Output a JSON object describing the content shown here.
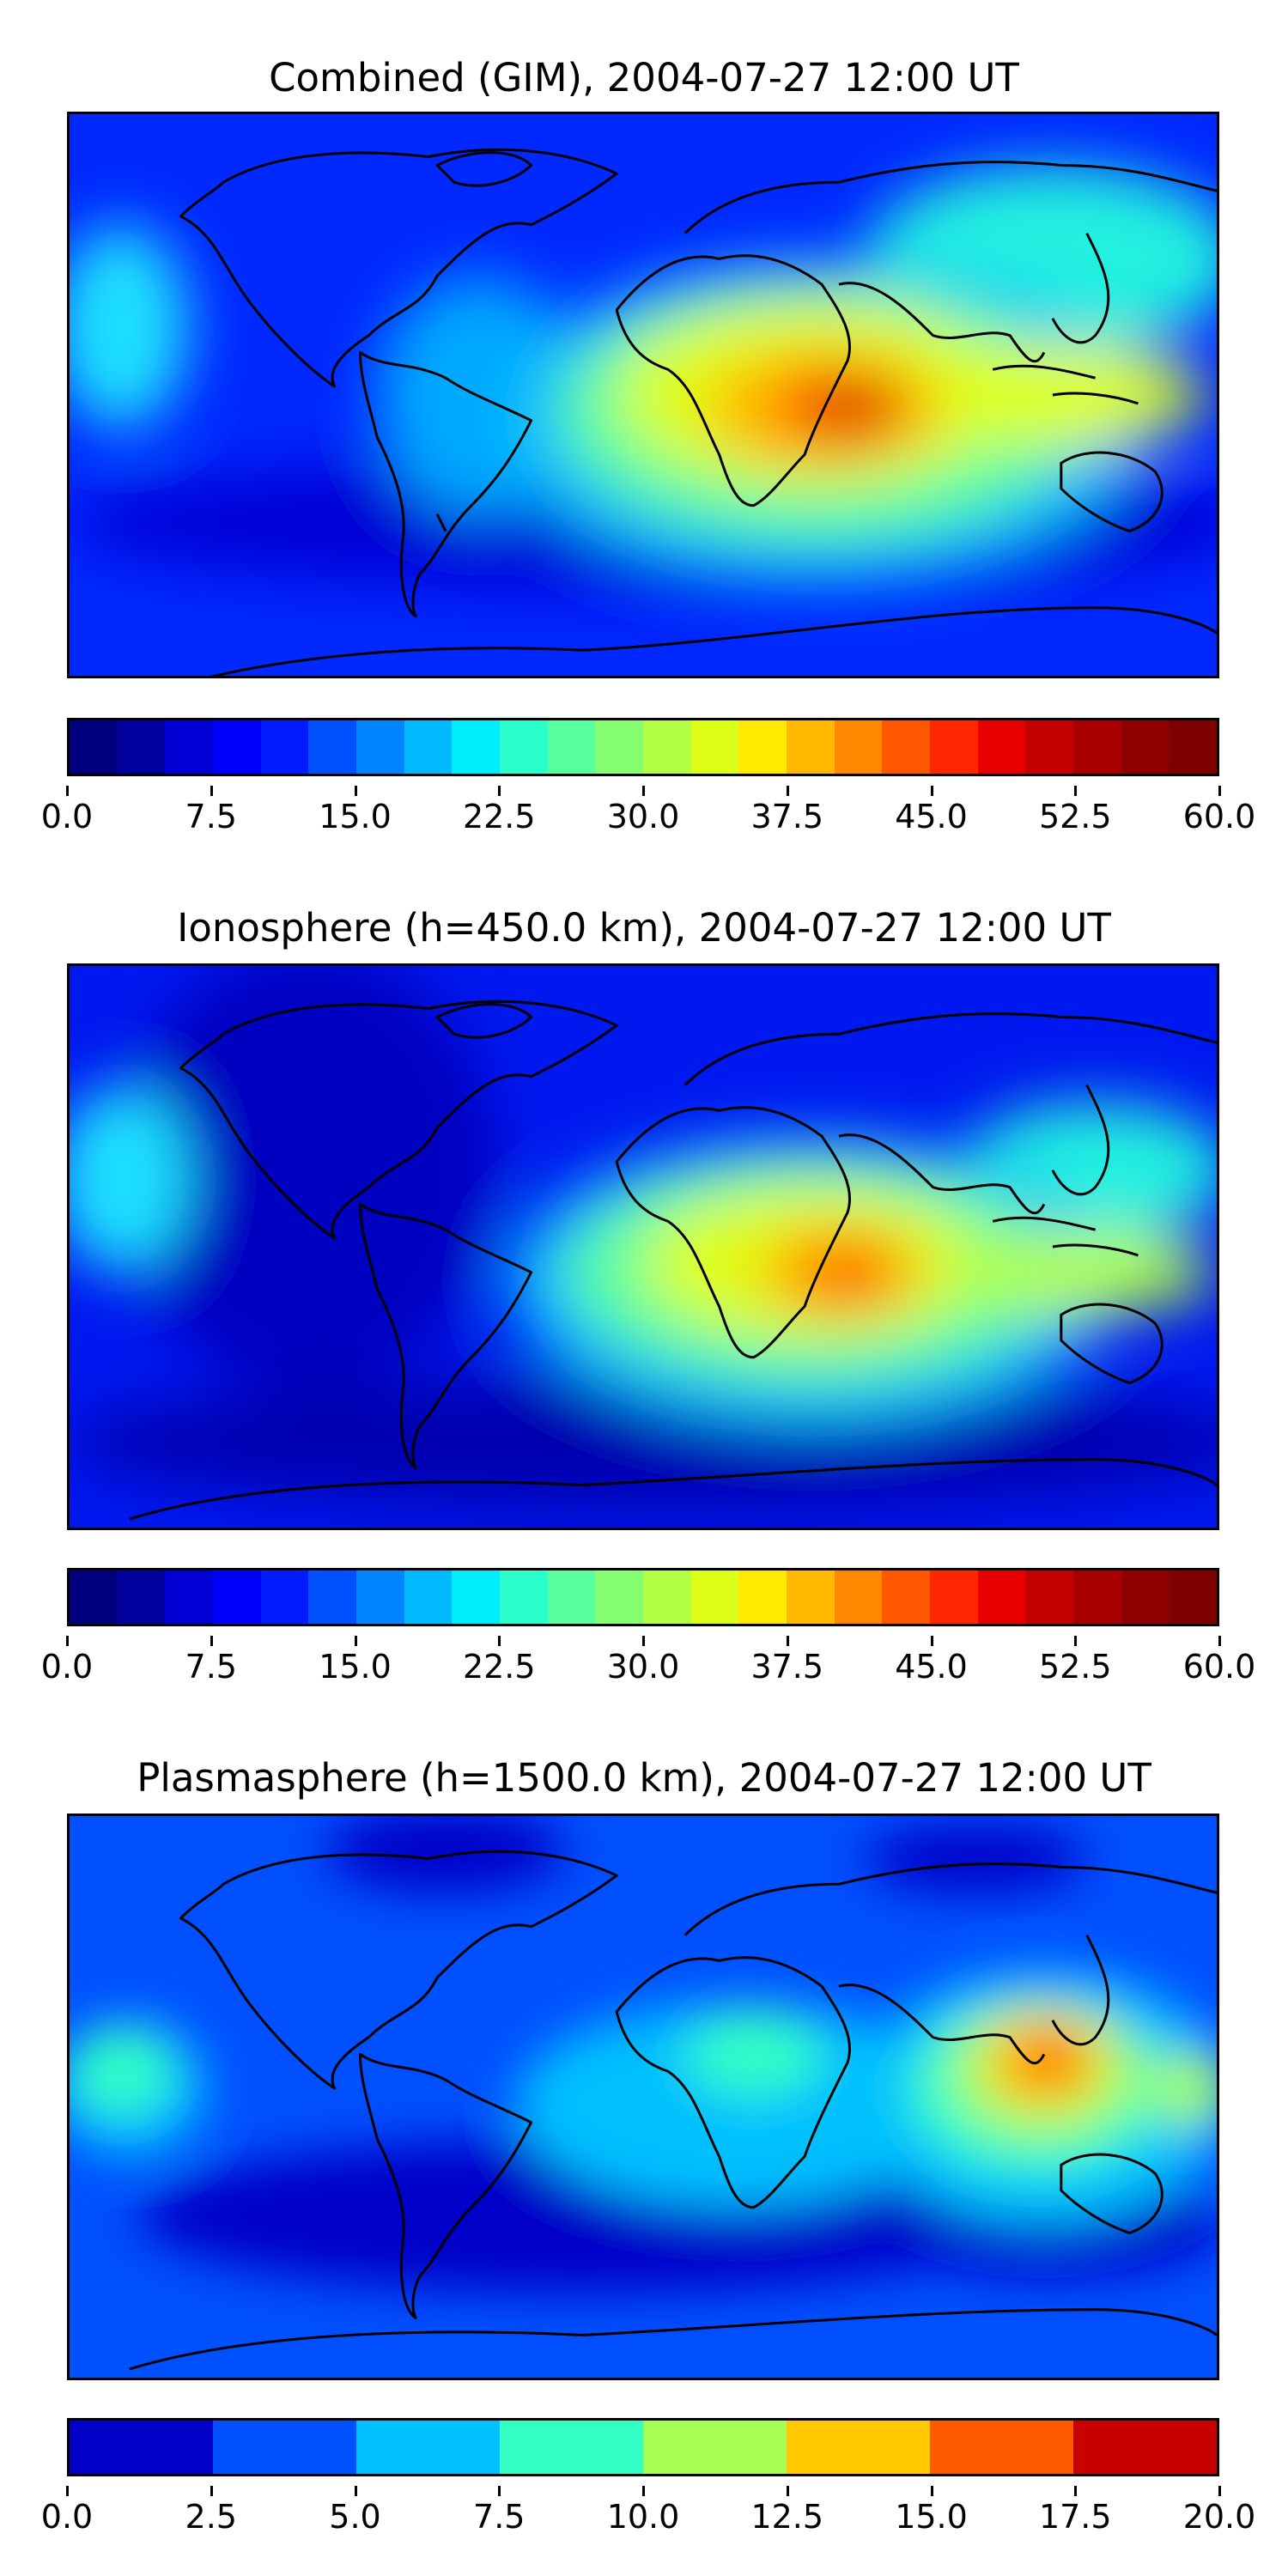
{
  "panels": [
    {
      "title": "Combined (GIM), 2004-07-27 12:00 UT",
      "ticks": [
        "0.0",
        "7.5",
        "15.0",
        "22.5",
        "30.0",
        "37.5",
        "45.0",
        "52.5",
        "60.0"
      ],
      "colorbar_range": [
        0,
        60
      ],
      "colorbar_levels": 24
    },
    {
      "title": "Ionosphere  (h=450.0 km), 2004-07-27 12:00 UT",
      "ticks": [
        "0.0",
        "7.5",
        "15.0",
        "22.5",
        "30.0",
        "37.5",
        "45.0",
        "52.5",
        "60.0"
      ],
      "colorbar_range": [
        0,
        60
      ],
      "colorbar_levels": 24
    },
    {
      "title": "Plasmasphere (h=1500.0 km), 2004-07-27 12:00 UT",
      "ticks": [
        "0.0",
        "2.5",
        "5.0",
        "7.5",
        "10.0",
        "12.5",
        "15.0",
        "17.5",
        "20.0"
      ],
      "colorbar_range": [
        0,
        20
      ],
      "colorbar_levels": 8
    }
  ],
  "colors": {
    "jet24": [
      "#00007f",
      "#00009f",
      "#0000d6",
      "#0000ff",
      "#001bff",
      "#0050ff",
      "#0085ff",
      "#00b9ff",
      "#00edfd",
      "#2bffcc",
      "#58ff9e",
      "#85ff71",
      "#b2ff44",
      "#deff17",
      "#fdea00",
      "#ffb900",
      "#ff8800",
      "#ff5700",
      "#ff2600",
      "#e60000",
      "#c40000",
      "#a80000",
      "#900000",
      "#7f0000"
    ],
    "jet8": [
      "#0000c8",
      "#0050ff",
      "#00c0ff",
      "#33ffc4",
      "#a6ff52",
      "#ffc800",
      "#ff5a00",
      "#c80000"
    ]
  }
}
